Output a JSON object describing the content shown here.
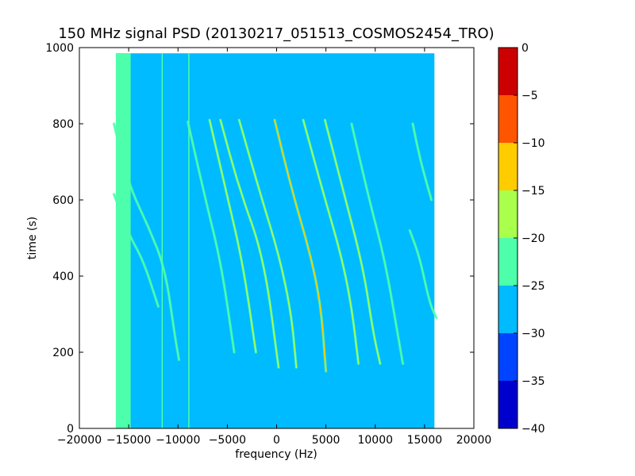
{
  "chart_data": {
    "type": "heatmap",
    "title": "150 MHz signal PSD (20130217_051513_COSMOS2454_TRO)",
    "xlabel": "frequency (Hz)",
    "ylabel": "time (s)",
    "xlim": [
      -20000,
      20000
    ],
    "ylim": [
      0,
      1000
    ],
    "xticks": [
      -20000,
      -15000,
      -10000,
      -5000,
      0,
      5000,
      10000,
      15000,
      20000
    ],
    "xtick_labels": [
      "−20000",
      "−15000",
      "−10000",
      "−5000",
      "0",
      "5000",
      "10000",
      "15000",
      "20000"
    ],
    "yticks": [
      0,
      200,
      400,
      600,
      800,
      1000
    ],
    "ytick_labels": [
      "0",
      "200",
      "400",
      "600",
      "800",
      "1000"
    ],
    "data_extent": {
      "x": [
        -16300,
        16000
      ],
      "y": [
        0,
        985
      ]
    },
    "background_level": -27.5,
    "left_band": {
      "x": [
        -16300,
        -14800
      ],
      "level": -22.5
    },
    "vertical_lines": [
      {
        "x": -11600,
        "level": -22.5
      },
      {
        "x": -8900,
        "level": -22.5
      }
    ],
    "colorbar": {
      "levels": [
        -40,
        -35,
        -30,
        -25,
        -20,
        -15,
        -10,
        -5,
        0
      ],
      "tick_labels": [
        "−40",
        "−35",
        "−30",
        "−25",
        "−20",
        "−15",
        "−10",
        "−5",
        "0"
      ],
      "colors": [
        "#0000cc",
        "#0044ff",
        "#00bbff",
        "#4dffaa",
        "#aaff4d",
        "#ffcc00",
        "#ff5500",
        "#cc0000"
      ]
    },
    "series": [
      {
        "values": [
          [
            -16500,
            615
          ],
          [
            -15000,
            510
          ],
          [
            -13500,
            440
          ],
          [
            -12000,
            320
          ]
        ],
        "level": -20
      },
      {
        "values": [
          [
            -16500,
            800
          ],
          [
            -15000,
            640
          ],
          [
            -13000,
            530
          ],
          [
            -11300,
            420
          ],
          [
            -10300,
            240
          ],
          [
            -9900,
            180
          ]
        ],
        "level": -20
      },
      {
        "values": [
          [
            -9000,
            805
          ],
          [
            -7200,
            600
          ],
          [
            -5600,
            430
          ],
          [
            -4300,
            200
          ]
        ],
        "level": -20
      },
      {
        "values": [
          [
            -6800,
            810
          ],
          [
            -5000,
            610
          ],
          [
            -3400,
            430
          ],
          [
            -2100,
            200
          ]
        ],
        "level": -17.5
      },
      {
        "values": [
          [
            -5700,
            810
          ],
          [
            -3800,
            630
          ],
          [
            -1300,
            450
          ],
          [
            200,
            160
          ]
        ],
        "level": -15
      },
      {
        "values": [
          [
            -3800,
            810
          ],
          [
            -1700,
            620
          ],
          [
            300,
            450
          ],
          [
            1500,
            300
          ],
          [
            2000,
            160
          ]
        ],
        "level": -15
      },
      {
        "values": [
          [
            -200,
            810
          ],
          [
            1500,
            630
          ],
          [
            3500,
            450
          ],
          [
            4500,
            320
          ],
          [
            5000,
            150
          ]
        ],
        "level": -10
      },
      {
        "values": [
          [
            2700,
            810
          ],
          [
            4600,
            630
          ],
          [
            6600,
            450
          ],
          [
            7600,
            320
          ],
          [
            8300,
            170
          ]
        ],
        "level": -15
      },
      {
        "values": [
          [
            4900,
            810
          ],
          [
            6800,
            620
          ],
          [
            8800,
            420
          ],
          [
            9800,
            250
          ],
          [
            10500,
            170
          ]
        ],
        "level": -15
      },
      {
        "values": [
          [
            7600,
            800
          ],
          [
            9300,
            610
          ],
          [
            11000,
            440
          ],
          [
            12200,
            260
          ],
          [
            12800,
            170
          ]
        ],
        "level": -22.5
      },
      {
        "values": [
          [
            13500,
            520
          ],
          [
            14500,
            450
          ],
          [
            15500,
            330
          ],
          [
            16200,
            290
          ]
        ],
        "level": -22.5
      },
      {
        "values": [
          [
            13800,
            800
          ],
          [
            14600,
            700
          ],
          [
            15700,
            600
          ]
        ],
        "level": -20
      }
    ]
  }
}
